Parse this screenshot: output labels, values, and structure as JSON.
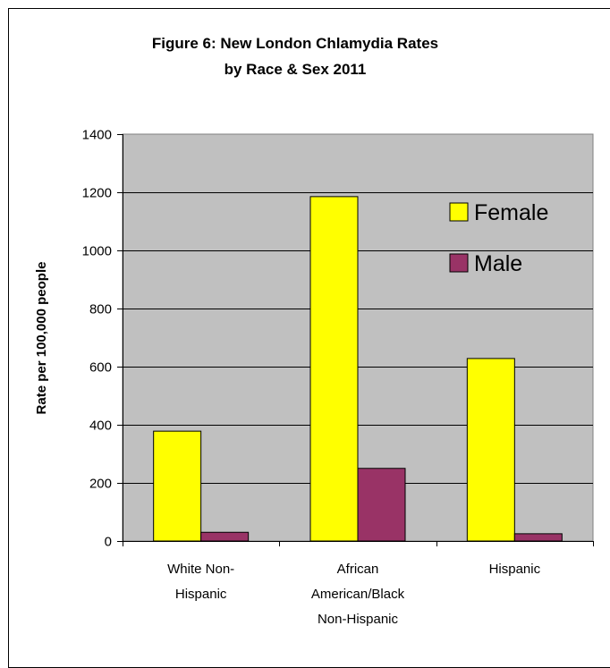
{
  "chart_data": {
    "type": "bar",
    "title": [
      "Figure 6: New London Chlamydia Rates",
      "by Race & Sex 2011"
    ],
    "xlabel": "",
    "ylabel": "Rate per 100,000 people",
    "ylim": [
      0,
      1400
    ],
    "yticks": [
      0,
      200,
      400,
      600,
      800,
      1000,
      1200,
      1400
    ],
    "categories": [
      [
        "White Non-",
        "Hispanic"
      ],
      [
        "African",
        "American/Black",
        "Non-Hispanic"
      ],
      [
        "Hispanic"
      ]
    ],
    "series": [
      {
        "name": "Female",
        "color": "#FFFF00",
        "values": [
          378,
          1185,
          628
        ]
      },
      {
        "name": "Male",
        "color": "#993366",
        "values": [
          30,
          250,
          25
        ]
      }
    ],
    "grid": true,
    "plot_background": "#C0C0C0",
    "legend": "inside-top-right"
  }
}
